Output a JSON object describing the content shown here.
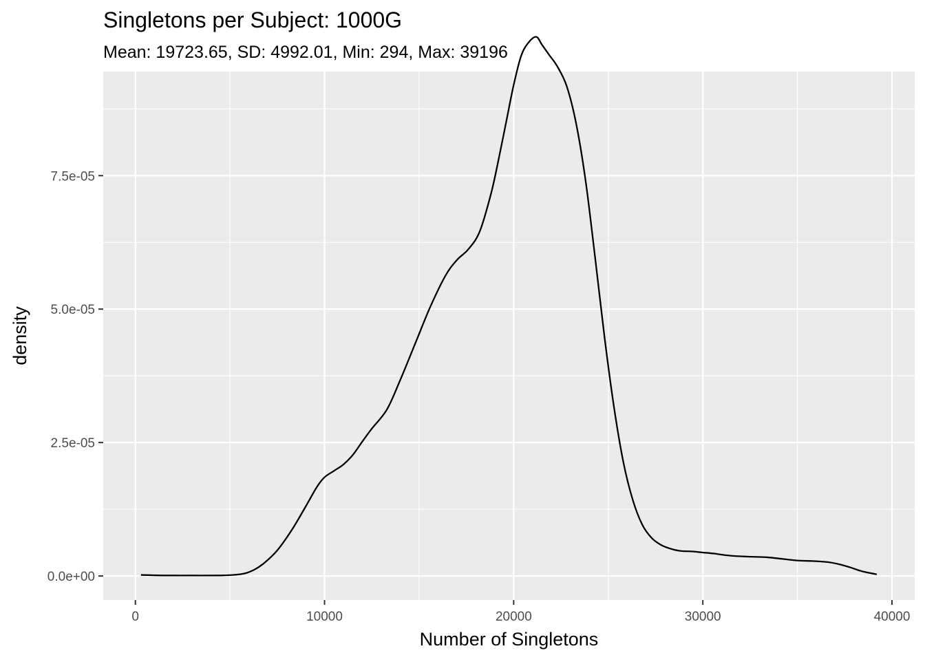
{
  "chart_data": {
    "type": "area",
    "title": "Singletons per Subject: 1000G",
    "subtitle": "Mean: 19723.65, SD: 4992.01, Min: 294, Max: 39196",
    "xlabel": "Number of Singletons",
    "ylabel": "density",
    "xlim": [
      -1700,
      41200
    ],
    "ylim": [
      -4.5e-06,
      9.45e-05
    ],
    "x_ticks": [
      0,
      10000,
      20000,
      30000,
      40000
    ],
    "x_tick_labels": [
      "0",
      "10000",
      "20000",
      "30000",
      "40000"
    ],
    "y_ticks": [
      0,
      2.5e-05,
      5e-05,
      7.5e-05
    ],
    "y_tick_labels": [
      "0.0e+00",
      "2.5e-05",
      "5.0e-05",
      "7.5e-05"
    ],
    "grid": true,
    "panel_background": "#ebebeb",
    "grid_color": "#ffffff",
    "line_color": "#000000",
    "series": [
      {
        "x": [
          294,
          1500,
          3000,
          4500,
          5200,
          5800,
          6300,
          6800,
          7500,
          8300,
          9000,
          9600,
          10000,
          10500,
          11000,
          11500,
          12000,
          12500,
          13300,
          14000,
          14800,
          15600,
          16400,
          17000,
          17600,
          18200,
          18800,
          19200,
          19600,
          20000,
          20400,
          20800,
          21200,
          21500,
          21900,
          22300,
          22800,
          23300,
          23800,
          24300,
          24800,
          25300,
          25800,
          26300,
          26800,
          27300,
          27800,
          28300,
          28800,
          29400,
          30000,
          30600,
          31200,
          31900,
          32600,
          33400,
          34200,
          35000,
          35800,
          36600,
          37200,
          37800,
          38400,
          39196
        ],
        "y": [
          2e-07,
          1e-07,
          1e-07,
          1e-07,
          2e-07,
          5e-07,
          1.2e-06,
          2.4e-06,
          4.8e-06,
          8.8e-06,
          1.3e-05,
          1.67e-05,
          1.85e-05,
          1.97e-05,
          2.09e-05,
          2.27e-05,
          2.52e-05,
          2.76e-05,
          3.12e-05,
          3.67e-05,
          4.36e-05,
          5.05e-05,
          5.63e-05,
          5.92e-05,
          6.12e-05,
          6.45e-05,
          7.16e-05,
          7.8e-05,
          8.5e-05,
          9.2e-05,
          9.75e-05,
          0.0001,
          0.000101,
          9.95e-05,
          9.75e-05,
          9.55e-05,
          9.18e-05,
          8.48e-05,
          7.41e-05,
          5.98e-05,
          4.48e-05,
          3.17e-05,
          2.13e-05,
          1.42e-05,
          9.6e-06,
          7.1e-06,
          5.8e-06,
          5.1e-06,
          4.7e-06,
          4.6e-06,
          4.4e-06,
          4.2e-06,
          3.9e-06,
          3.7e-06,
          3.6e-06,
          3.5e-06,
          3.2e-06,
          2.9e-06,
          2.8e-06,
          2.6e-06,
          2.2e-06,
          1.6e-06,
          9e-07,
          3e-07
        ]
      }
    ]
  }
}
